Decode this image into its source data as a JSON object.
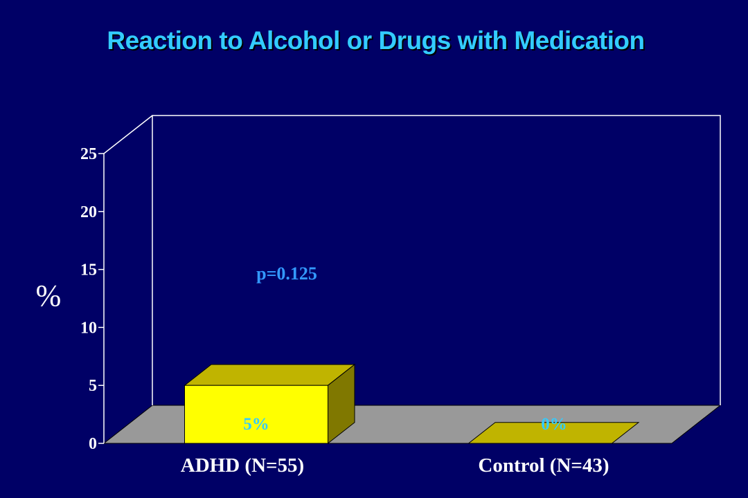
{
  "chart_data": {
    "type": "bar",
    "title": "Reaction to Alcohol or Drugs with Medication",
    "ylabel": "%",
    "ylim": [
      0,
      25
    ],
    "yticks": [
      0,
      5,
      10,
      15,
      20,
      25
    ],
    "categories": [
      "ADHD (N=55)",
      "Control (N=43)"
    ],
    "series": [
      {
        "values": [
          5,
          0
        ],
        "data_labels": [
          "5%",
          "0%"
        ]
      }
    ],
    "annotations": [
      {
        "text": "p=0.125"
      }
    ],
    "grid": false,
    "legend": "none",
    "three_d": true
  },
  "colors": {
    "background": "#000066",
    "title": "#33ccff",
    "axis_lines": "#ffffff",
    "tick_labels": "#ffffff",
    "annotation": "#3399ff",
    "data_labels": "#33ccff",
    "floor": "#999999",
    "bar_front": "#ffff00",
    "bar_top": "#c0b400",
    "bar_side": "#807800"
  }
}
